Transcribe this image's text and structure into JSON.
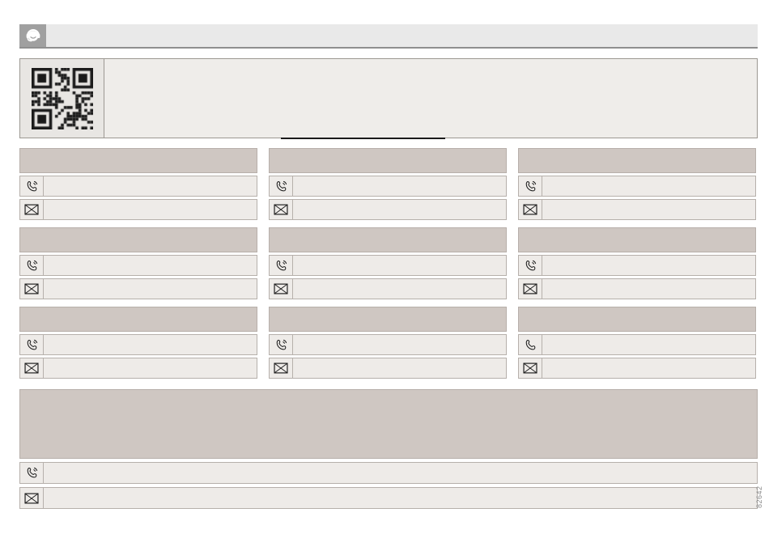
{
  "page": {
    "figure_number": "82642",
    "background_color": "#ffffff"
  },
  "topbar": {
    "icon": "headset-support-icon",
    "icon_background": "#a0a0a0",
    "bar_background": "#e9e9e9",
    "title": ""
  },
  "qr_section": {
    "icon": "qr-code-icon",
    "body_text": "",
    "link_text": ""
  },
  "colors": {
    "card_header": "#cfc7c2",
    "row_background": "#eeebe8",
    "row_border": "#b6b0ab",
    "icon_stroke": "#1e1e1e",
    "link_line": "#1a1a1a"
  },
  "contact_cards": [
    {
      "title": "",
      "phone": "",
      "email": "",
      "phone_icon": "phone-waves-icon",
      "email_icon": "envelope-icon"
    },
    {
      "title": "",
      "phone": "",
      "email": "",
      "phone_icon": "phone-waves-icon",
      "email_icon": "envelope-icon"
    },
    {
      "title": "",
      "phone": "",
      "email": "",
      "phone_icon": "phone-waves-icon",
      "email_icon": "envelope-icon"
    },
    {
      "title": "",
      "phone": "",
      "email": "",
      "phone_icon": "phone-waves-icon",
      "email_icon": "envelope-icon"
    },
    {
      "title": "",
      "phone": "",
      "email": "",
      "phone_icon": "phone-waves-icon",
      "email_icon": "envelope-icon"
    },
    {
      "title": "",
      "phone": "",
      "email": "",
      "phone_icon": "phone-waves-icon",
      "email_icon": "envelope-icon"
    },
    {
      "title": "",
      "phone": "",
      "email": "",
      "phone_icon": "phone-waves-icon",
      "email_icon": "envelope-icon"
    },
    {
      "title": "",
      "phone": "",
      "email": "",
      "phone_icon": "phone-waves-icon",
      "email_icon": "envelope-icon"
    },
    {
      "title": "",
      "phone": "",
      "email": "",
      "phone_icon": "phone-plain-icon",
      "email_icon": "envelope-icon"
    }
  ],
  "footer_card": {
    "title": "",
    "phone": "",
    "email": "",
    "phone_icon": "phone-waves-icon",
    "email_icon": "envelope-icon"
  }
}
